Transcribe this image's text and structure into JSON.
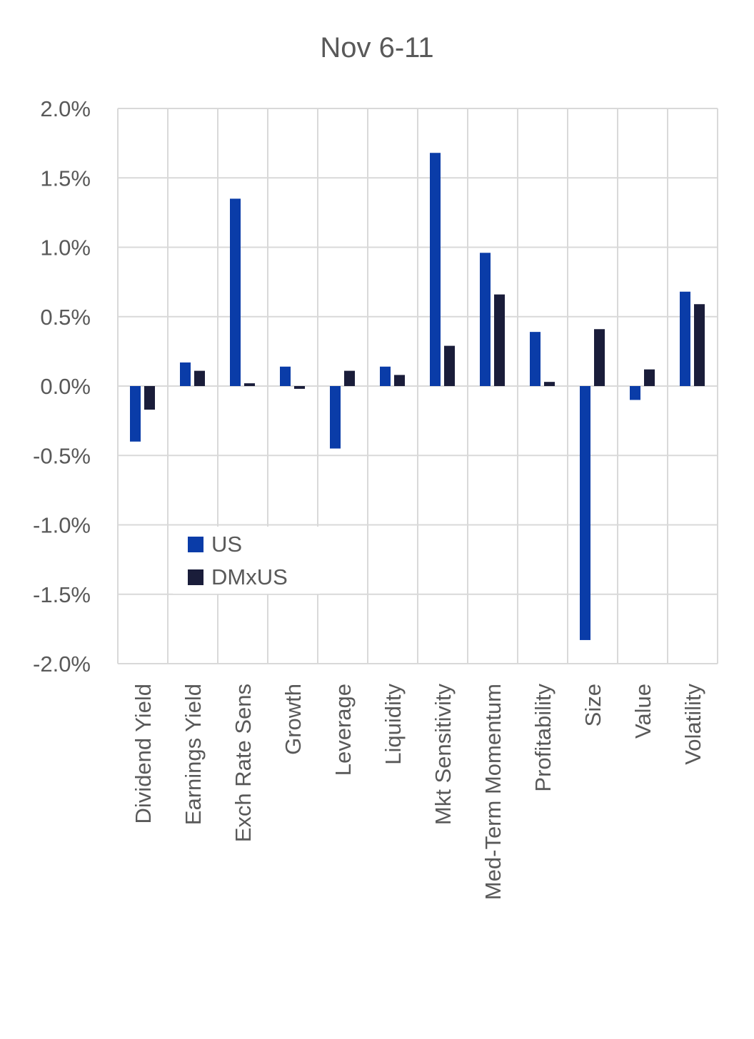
{
  "chart_data": {
    "type": "bar",
    "title": "Nov 6-11",
    "xlabel": "",
    "ylabel": "",
    "ylim": [
      -2.0,
      2.0
    ],
    "yticks": [
      "2.0%",
      "1.5%",
      "1.0%",
      "0.5%",
      "0.0%",
      "-0.5%",
      "-1.0%",
      "-1.5%",
      "-2.0%"
    ],
    "ytick_values": [
      2.0,
      1.5,
      1.0,
      0.5,
      0.0,
      -0.5,
      -1.0,
      -1.5,
      -2.0
    ],
    "grid": true,
    "legend_position": "lower-left",
    "categories": [
      "Dividend Yield",
      "Earnings Yield",
      "Exch Rate Sens",
      "Growth",
      "Leverage",
      "Liquidity",
      "Mkt Sensitivity",
      "Med-Term Momentum",
      "Profitability",
      "Size",
      "Value",
      "Volatility"
    ],
    "series": [
      {
        "name": "US",
        "color": "#0a3ca8",
        "values": [
          -0.4,
          0.17,
          1.35,
          0.14,
          -0.45,
          0.14,
          1.68,
          0.96,
          0.39,
          -1.83,
          -0.1,
          0.68
        ]
      },
      {
        "name": "DMxUS",
        "color": "#1a1d3a",
        "values": [
          -0.17,
          0.11,
          0.02,
          -0.02,
          0.11,
          0.08,
          0.29,
          0.66,
          0.03,
          0.41,
          0.12,
          0.59
        ]
      }
    ]
  }
}
